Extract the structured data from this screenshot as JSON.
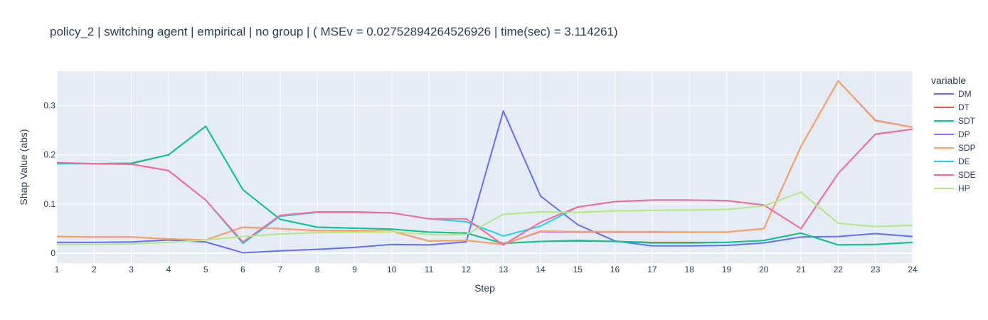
{
  "chart_data": {
    "type": "line",
    "title": "policy_2 | switching agent | empirical | no group |  ( MSEv = 0.02752894264526926 | time(sec) = 3.114261)",
    "xlabel": "Step",
    "ylabel": "Shap Value (abs)",
    "legend_title": "variable",
    "legend_position": "right",
    "grid": true,
    "xlim": [
      1,
      24
    ],
    "ylim": [
      -0.02,
      0.37
    ],
    "x": [
      1,
      2,
      3,
      4,
      5,
      6,
      7,
      8,
      9,
      10,
      11,
      12,
      13,
      14,
      15,
      16,
      17,
      18,
      19,
      20,
      21,
      22,
      23,
      24
    ],
    "x_ticks": [
      "1",
      "2",
      "3",
      "4",
      "5",
      "6",
      "7",
      "8",
      "9",
      "10",
      "11",
      "12",
      "13",
      "14",
      "15",
      "16",
      "17",
      "18",
      "19",
      "20",
      "21",
      "22",
      "23",
      "24"
    ],
    "y_ticks": [
      {
        "value": 0,
        "label": "0"
      },
      {
        "value": 0.1,
        "label": "0.1"
      },
      {
        "value": 0.2,
        "label": "0.2"
      },
      {
        "value": 0.3,
        "label": "0.3"
      }
    ],
    "series": [
      {
        "name": "DM",
        "color": "#636efa",
        "values": [
          0.022,
          0.022,
          0.023,
          0.027,
          0.023,
          0.001,
          0.005,
          0.008,
          0.012,
          0.018,
          0.017,
          0.023,
          0.289,
          0.116,
          0.058,
          0.025,
          0.015,
          0.015,
          0.016,
          0.021,
          0.033,
          0.034,
          0.04,
          0.034
        ]
      },
      {
        "name": "DT",
        "color": "#EF553B",
        "values": [
          0.182,
          0.182,
          0.182,
          0.2,
          0.258,
          0.129,
          0.069,
          0.053,
          0.051,
          0.049,
          0.043,
          0.041,
          0.02,
          0.024,
          0.026,
          0.024,
          0.022,
          0.022,
          0.022,
          0.026,
          0.041,
          0.017,
          0.018,
          0.022
        ]
      },
      {
        "name": "SDT",
        "color": "#00cc96",
        "values": [
          0.182,
          0.182,
          0.183,
          0.2,
          0.258,
          0.129,
          0.069,
          0.053,
          0.051,
          0.049,
          0.043,
          0.041,
          0.02,
          0.024,
          0.025,
          0.024,
          0.021,
          0.021,
          0.022,
          0.026,
          0.041,
          0.017,
          0.018,
          0.022
        ]
      },
      {
        "name": "DP",
        "color": "#ab63fa",
        "values": [
          0.034,
          0.033,
          0.033,
          0.029,
          0.027,
          0.053,
          0.05,
          0.046,
          0.046,
          0.045,
          0.025,
          0.026,
          0.018,
          0.044,
          0.043,
          0.043,
          0.043,
          0.043,
          0.043,
          0.05,
          0.217,
          0.35,
          0.27,
          0.256
        ]
      },
      {
        "name": "SDP",
        "color": "#FFA15A",
        "values": [
          0.034,
          0.033,
          0.033,
          0.029,
          0.027,
          0.053,
          0.05,
          0.046,
          0.046,
          0.045,
          0.025,
          0.026,
          0.018,
          0.045,
          0.044,
          0.044,
          0.044,
          0.043,
          0.043,
          0.05,
          0.217,
          0.35,
          0.269,
          0.256
        ]
      },
      {
        "name": "DE",
        "color": "#19d3f3",
        "values": [
          0.183,
          0.182,
          0.181,
          0.168,
          0.108,
          0.02,
          0.075,
          0.083,
          0.083,
          0.082,
          0.07,
          0.064,
          0.035,
          0.055,
          0.094,
          0.105,
          0.108,
          0.108,
          0.107,
          0.098,
          0.05,
          0.162,
          0.242,
          0.252
        ]
      },
      {
        "name": "SDE",
        "color": "#FF6692",
        "values": [
          0.184,
          0.182,
          0.181,
          0.168,
          0.108,
          0.023,
          0.077,
          0.084,
          0.084,
          0.082,
          0.07,
          0.07,
          0.017,
          0.063,
          0.094,
          0.105,
          0.108,
          0.108,
          0.107,
          0.098,
          0.05,
          0.162,
          0.242,
          0.252
        ]
      },
      {
        "name": "HP",
        "color": "#B6E880",
        "values": [
          0.018,
          0.018,
          0.019,
          0.022,
          0.027,
          0.034,
          0.039,
          0.042,
          0.043,
          0.044,
          0.038,
          0.038,
          0.079,
          0.084,
          0.083,
          0.086,
          0.087,
          0.088,
          0.089,
          0.096,
          0.124,
          0.061,
          0.054,
          0.057
        ]
      }
    ]
  },
  "colors": {
    "plot_bg": "#e5ecf6",
    "grid": "#ffffff",
    "text": "#2a3f5f"
  }
}
